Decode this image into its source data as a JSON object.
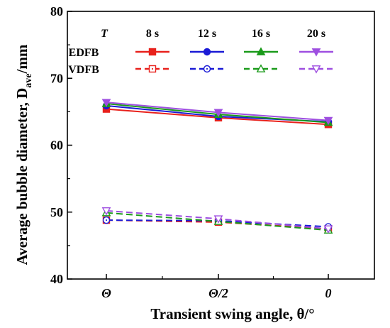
{
  "chart_data": {
    "type": "line",
    "xlabel": "Transient swing angle, θ/°",
    "ylabel": "Average bubble diameter, D",
    "ylabel_sub": "ave",
    "ylabel_unit": "/mm",
    "categories": [
      "Θ",
      "Θ/2",
      "0"
    ],
    "ylim": [
      40,
      80
    ],
    "yticks": [
      40,
      50,
      60,
      70,
      80
    ],
    "grid": false,
    "legend": {
      "placement": "top",
      "header": "T",
      "column_labels": [
        "8 s",
        "12 s",
        "16 s",
        "20 s"
      ],
      "row_labels": [
        "EDFB",
        "VDFB"
      ]
    },
    "series": [
      {
        "group": "EDFB",
        "time": "8 s",
        "values": [
          65.4,
          64.1,
          63.1
        ],
        "color": "#e8211c",
        "marker": "square",
        "filled": true,
        "dashed": false
      },
      {
        "group": "EDFB",
        "time": "12 s",
        "values": [
          65.9,
          64.3,
          63.5
        ],
        "color": "#1a1ad6",
        "marker": "circle",
        "filled": true,
        "dashed": false
      },
      {
        "group": "EDFB",
        "time": "16 s",
        "values": [
          66.2,
          64.6,
          63.4
        ],
        "color": "#1a9a1a",
        "marker": "triangle-up",
        "filled": true,
        "dashed": false
      },
      {
        "group": "EDFB",
        "time": "20 s",
        "values": [
          66.4,
          64.9,
          63.7
        ],
        "color": "#9e4fe0",
        "marker": "triangle-down",
        "filled": true,
        "dashed": false
      },
      {
        "group": "VDFB",
        "time": "8 s",
        "values": [
          48.8,
          48.5,
          47.5
        ],
        "color": "#e8211c",
        "marker": "square",
        "filled": false,
        "dashed": true
      },
      {
        "group": "VDFB",
        "time": "12 s",
        "values": [
          48.8,
          48.7,
          47.8
        ],
        "color": "#1a1ad6",
        "marker": "circle",
        "filled": false,
        "dashed": true
      },
      {
        "group": "VDFB",
        "time": "16 s",
        "values": [
          49.9,
          48.6,
          47.3
        ],
        "color": "#1a9a1a",
        "marker": "triangle-up",
        "filled": false,
        "dashed": true
      },
      {
        "group": "VDFB",
        "time": "20 s",
        "values": [
          50.2,
          49.0,
          47.5
        ],
        "color": "#9e4fe0",
        "marker": "triangle-down",
        "filled": false,
        "dashed": true
      }
    ]
  }
}
